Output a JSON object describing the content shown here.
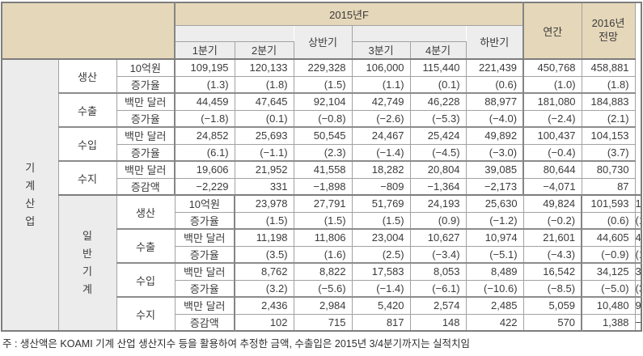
{
  "header": {
    "year_group": "2015년F",
    "half1": "상반기",
    "half2": "하반기",
    "quarters": [
      "1분기",
      "2분기",
      "3분기",
      "4분기"
    ],
    "annual": "연간",
    "forecast": "2016년\n전망"
  },
  "sections": [
    {
      "industry": "기\n계\n산\n업",
      "groups": [
        {
          "category": "생산",
          "rows": [
            {
              "unit": "10억원",
              "values": [
                "109,195",
                "120,133",
                "229,328",
                "106,000",
                "115,440",
                "221,439",
                "450,768",
                "458,881"
              ]
            },
            {
              "unit": "증가율",
              "values": [
                "(1.3)",
                "(1.8)",
                "(1.5)",
                "(1.1)",
                "(0.1)",
                "(0.6)",
                "(1.0)",
                "(1.8)"
              ]
            }
          ]
        },
        {
          "category": "수출",
          "rows": [
            {
              "unit": "백만 달러",
              "values": [
                "44,459",
                "47,645",
                "92,104",
                "42,749",
                "46,228",
                "88,977",
                "181,080",
                "184,883"
              ]
            },
            {
              "unit": "증가율",
              "values": [
                "(−1.8)",
                "(0.1)",
                "(−0.8)",
                "(−2.6)",
                "(−5.3)",
                "(−4.0)",
                "(−2.4)",
                "(2.1)"
              ]
            }
          ]
        },
        {
          "category": "수입",
          "rows": [
            {
              "unit": "백만 달러",
              "values": [
                "24,852",
                "25,693",
                "50,545",
                "24,467",
                "25,424",
                "49,892",
                "100,437",
                "104,153"
              ]
            },
            {
              "unit": "증가율",
              "values": [
                "(6.1)",
                "(−1.1)",
                "(2.3)",
                "(−1.4)",
                "(−4.5)",
                "(−3.0)",
                "(−0.4)",
                "(3.7)"
              ]
            }
          ]
        },
        {
          "category": "수지",
          "rows": [
            {
              "unit": "백만 달러",
              "values": [
                "19,606",
                "21,952",
                "41,558",
                "18,282",
                "20,804",
                "39,085",
                "80,644",
                "80,730"
              ]
            },
            {
              "unit": "증감액",
              "values": [
                "−2,229",
                "331",
                "−1,898",
                "−809",
                "−1,364",
                "−2,173",
                "−4,071",
                "87"
              ]
            }
          ]
        }
      ]
    },
    {
      "industry": "일\n반\n기\n계",
      "groups": [
        {
          "category": "생산",
          "rows": [
            {
              "unit": "10억원",
              "values": [
                "23,978",
                "27,791",
                "51,769",
                "24,193",
                "25,630",
                "49,824",
                "101,593",
                "103,015"
              ]
            },
            {
              "unit": "증가율",
              "values": [
                "(1.5)",
                "(1.5)",
                "(1.5)",
                "(0.9)",
                "(−1.2)",
                "(−0.2)",
                "(0.6)",
                "(1.4)"
              ]
            }
          ]
        },
        {
          "category": "수출",
          "rows": [
            {
              "unit": "백만 달러",
              "values": [
                "11,198",
                "11,806",
                "23,004",
                "10,627",
                "10,974",
                "21,601",
                "44,605",
                "45,140"
              ]
            },
            {
              "unit": "증가율",
              "values": [
                "(3.5)",
                "(1.6)",
                "(2.5)",
                "(−3.4)",
                "(−5.1)",
                "(−4.3)",
                "(−0.9)",
                "(1.2)"
              ]
            }
          ]
        },
        {
          "category": "수입",
          "rows": [
            {
              "unit": "백만 달러",
              "values": [
                "8,762",
                "8,822",
                "17,583",
                "8,053",
                "8,489",
                "16,542",
                "34,125",
                "35,319"
              ]
            },
            {
              "unit": "증가율",
              "values": [
                "(3.2)",
                "(−5.6)",
                "(−1.4)",
                "(−6.1)",
                "(−10.6)",
                "(−8.5)",
                "(−5.0)",
                "(3.5)"
              ]
            }
          ]
        },
        {
          "category": "수지",
          "rows": [
            {
              "unit": "백만 달러",
              "values": [
                "2,436",
                "2,984",
                "5,420",
                "2,574",
                "2,485",
                "5,059",
                "10,480",
                "9,820"
              ]
            },
            {
              "unit": "증감액",
              "values": [
                "102",
                "715",
                "817",
                "148",
                "422",
                "570",
                "1,388",
                "−659"
              ]
            }
          ]
        }
      ]
    }
  ],
  "footnote": "주 : 생산액은 KOAMI 기계 산업 생산지수 등을 활용하여 추정한 금액, 수출입은 2015년 3/4분기까지는 실적치임",
  "colors": {
    "header_bg": "#e5d7b9",
    "subheader_bg": "#ededed",
    "industry_col_bg": "#ececec",
    "border": "#a2a2a2",
    "border_thick": "#7d7d7d",
    "text": "#3b3b3b"
  }
}
